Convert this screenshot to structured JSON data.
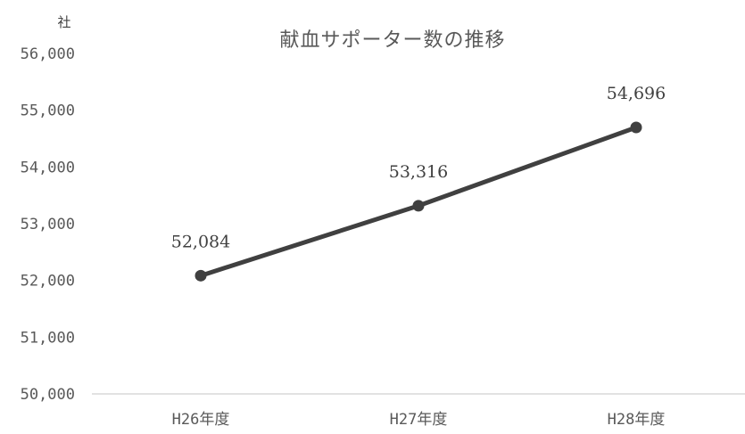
{
  "chart_data": {
    "type": "line",
    "title": "献血サポーター数の推移",
    "ylabel": "社",
    "xlabel": "",
    "categories": [
      "H26年度",
      "H27年度",
      "H28年度"
    ],
    "series": [
      {
        "values": [
          52084,
          53316,
          54696
        ],
        "data_labels": [
          "52,084",
          "53,316",
          "54,696"
        ],
        "color": "#404040"
      }
    ],
    "ylim": [
      50000,
      56000
    ],
    "y_ticks": [
      50000,
      51000,
      52000,
      53000,
      54000,
      55000,
      56000
    ],
    "y_tick_labels": [
      "50,000",
      "51,000",
      "52,000",
      "53,000",
      "54,000",
      "55,000",
      "56,000"
    ],
    "grid": false,
    "legend": "none",
    "axis_color": "#d9d9d9"
  }
}
